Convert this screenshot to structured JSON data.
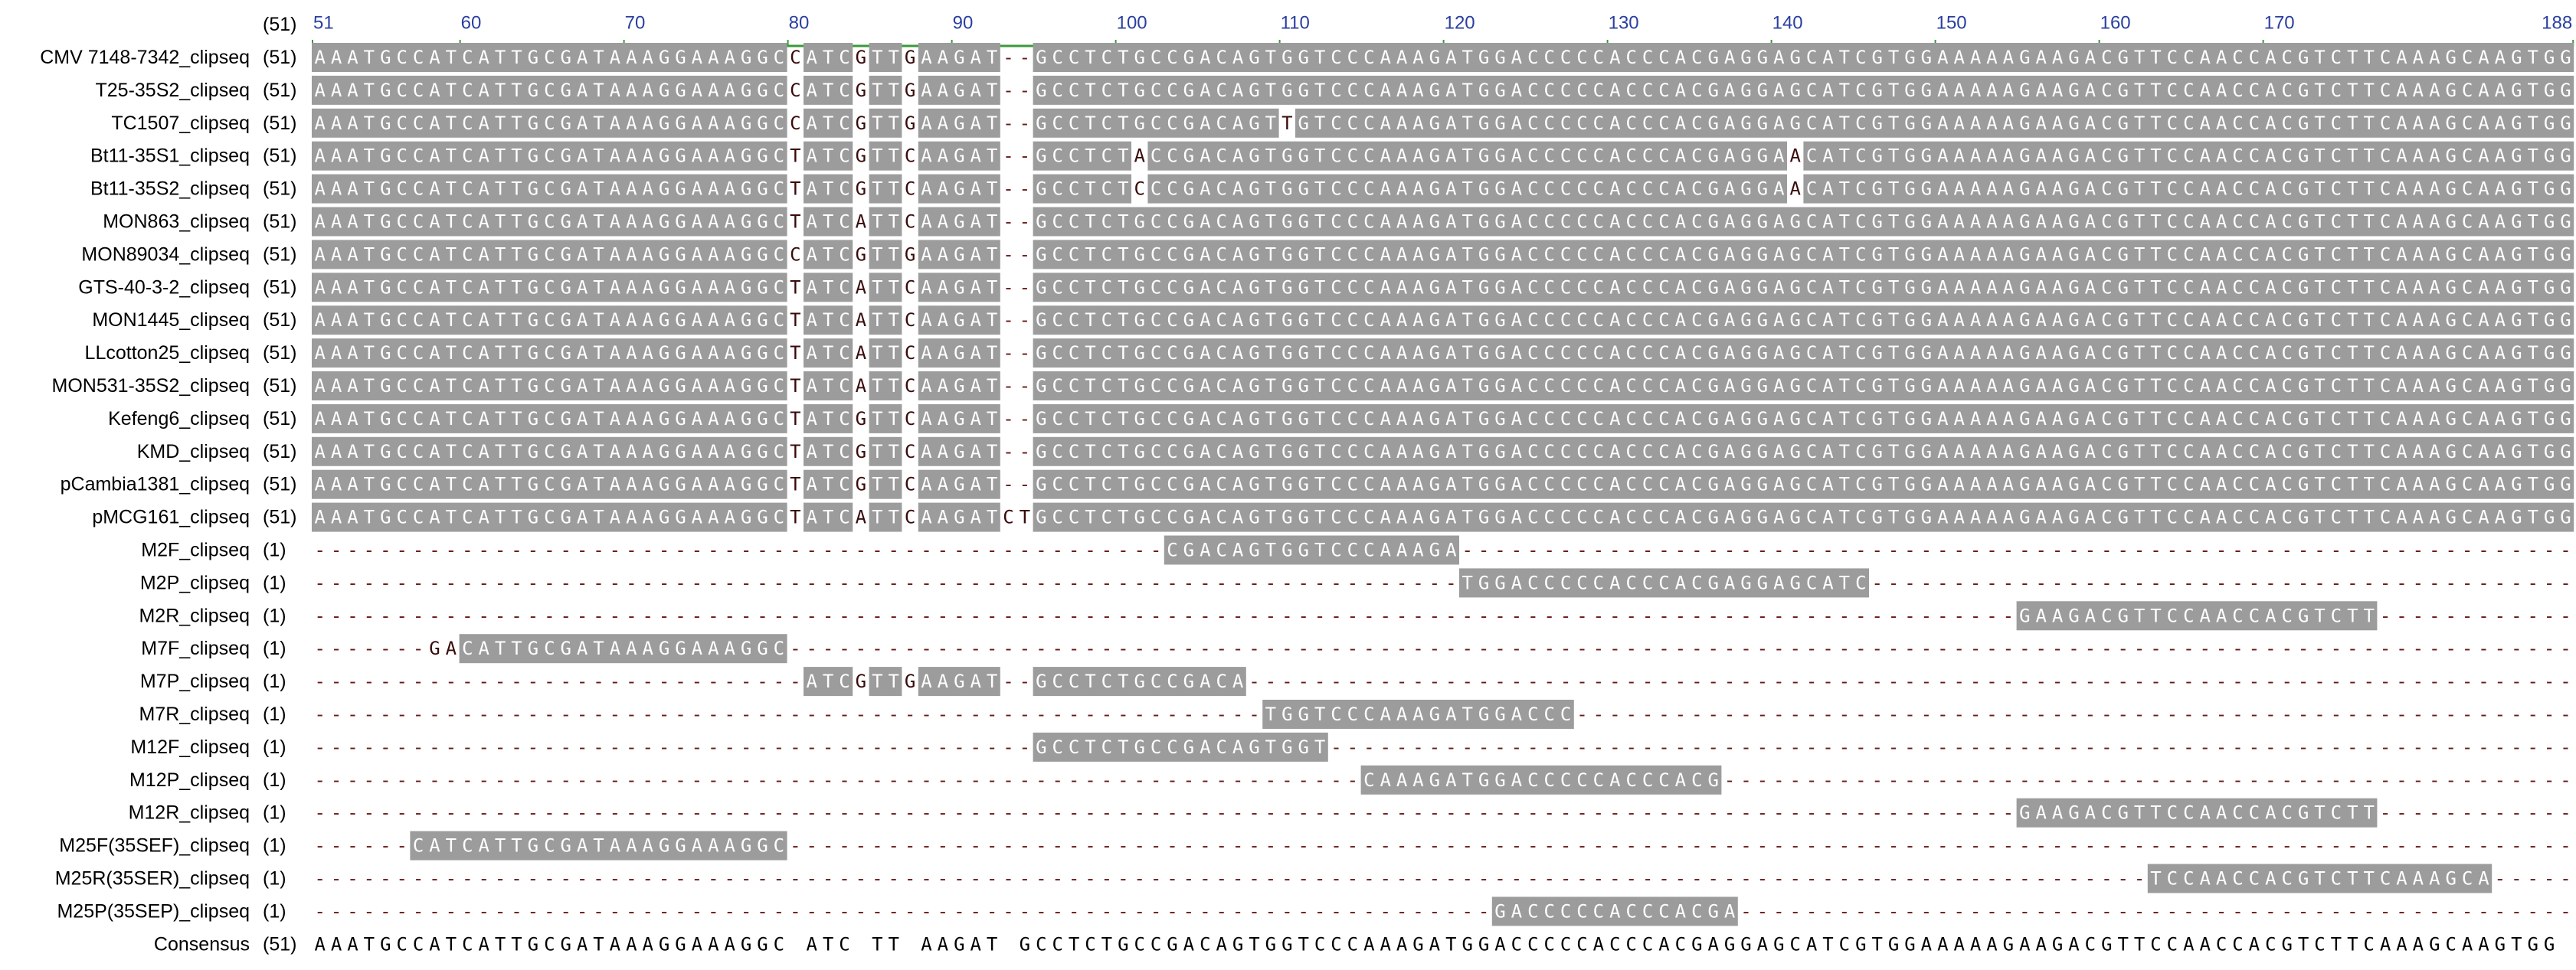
{
  "ruler": {
    "start": "(51)",
    "ticks": [
      51,
      60,
      70,
      80,
      90,
      100,
      110,
      120,
      130,
      140,
      150,
      160,
      170,
      188
    ]
  },
  "rows": [
    {
      "name": "CMV 7148-7342_clipseq",
      "start": "(51)",
      "sequence": "AAATGCCATCATTGCGATAAAGGAAAGGCCATCGTTGAAGAT--GCCTCTGCCGACAGTGGTCCCAAAGATGGACCCCCACCCACGAGGAGCATCGTGGAAAAAGAAGACGTTCCAACCACGTCTTCAAAGCAAGTGG"
    },
    {
      "name": "T25-35S2_clipseq",
      "start": "(51)",
      "sequence": "AAATGCCATCATTGCGATAAAGGAAAGGCCATCGTTGAAGAT--GCCTCTGCCGACAGTGGTCCCAAAGATGGACCCCCACCCACGAGGAGCATCGTGGAAAAAGAAGACGTTCCAACCACGTCTTCAAAGCAAGTGG"
    },
    {
      "name": "TC1507_clipseq",
      "start": "(51)",
      "sequence": "AAATGCCATCATTGCGATAAAGGAAAGGCCATCGTTGAAGAT--GCCTCTGCCGACAGTTGTCCCAAAGATGGACCCCCACCCACGAGGAGCATCGTGGAAAAAGAAGACGTTCCAACCACGTCTTCAAAGCAAGTGG"
    },
    {
      "name": "Bt11-35S1_clipseq",
      "start": "(51)",
      "sequence": "AAATGCCATCATTGCGATAAAGGAAAGGCTATCGTTCAAGAT--GCCTCTACCGACAGTGGTCCCAAAGATGGACCCCCACCCACGAGGAACATCGTGGAAAAAGAAGACGTTCCAACCACGTCTTCAAAGCAAGTGG"
    },
    {
      "name": "Bt11-35S2_clipseq",
      "start": "(51)",
      "sequence": "AAATGCCATCATTGCGATAAAGGAAAGGCTATCGTTCAAGAT--GCCTCTCCCGACAGTGGTCCCAAAGATGGACCCCCACCCACGAGGAACATCGTGGAAAAAGAAGACGTTCCAACCACGTCTTCAAAGCAAGTGG"
    },
    {
      "name": "MON863_clipseq",
      "start": "(51)",
      "sequence": "AAATGCCATCATTGCGATAAAGGAAAGGCTATCATTCAAGAT--GCCTCTGCCGACAGTGGTCCCAAAGATGGACCCCCACCCACGAGGAGCATCGTGGAAAAAGAAGACGTTCCAACCACGTCTTCAAAGCAAGTGG"
    },
    {
      "name": "MON89034_clipseq",
      "start": "(51)",
      "sequence": "AAATGCCATCATTGCGATAAAGGAAAGGCCATCGTTGAAGAT--GCCTCTGCCGACAGTGGTCCCAAAGATGGACCCCCACCCACGAGGAGCATCGTGGAAAAAGAAGACGTTCCAACCACGTCTTCAAAGCAAGTGG"
    },
    {
      "name": "GTS-40-3-2_clipseq",
      "start": "(51)",
      "sequence": "AAATGCCATCATTGCGATAAAGGAAAGGCTATCATTCAAGAT--GCCTCTGCCGACAGTGGTCCCAAAGATGGACCCCCACCCACGAGGAGCATCGTGGAAAAAGAAGACGTTCCAACCACGTCTTCAAAGCAAGTGG"
    },
    {
      "name": "MON1445_clipseq",
      "start": "(51)",
      "sequence": "AAATGCCATCATTGCGATAAAGGAAAGGCTATCATTCAAGAT--GCCTCTGCCGACAGTGGTCCCAAAGATGGACCCCCACCCACGAGGAGCATCGTGGAAAAAGAAGACGTTCCAACCACGTCTTCAAAGCAAGTGG"
    },
    {
      "name": "LLcotton25_clipseq",
      "start": "(51)",
      "sequence": "AAATGCCATCATTGCGATAAAGGAAAGGCTATCATTCAAGAT--GCCTCTGCCGACAGTGGTCCCAAAGATGGACCCCCACCCACGAGGAGCATCGTGGAAAAAGAAGACGTTCCAACCACGTCTTCAAAGCAAGTGG"
    },
    {
      "name": "MON531-35S2_clipseq",
      "start": "(51)",
      "sequence": "AAATGCCATCATTGCGATAAAGGAAAGGCTATCATTCAAGAT--GCCTCTGCCGACAGTGGTCCCAAAGATGGACCCCCACCCACGAGGAGCATCGTGGAAAAAGAAGACGTTCCAACCACGTCTTCAAAGCAAGTGG"
    },
    {
      "name": "Kefeng6_clipseq",
      "start": "(51)",
      "sequence": "AAATGCCATCATTGCGATAAAGGAAAGGCTATCGTTCAAGAT--GCCTCTGCCGACAGTGGTCCCAAAGATGGACCCCCACCCACGAGGAGCATCGTGGAAAAAGAAGACGTTCCAACCACGTCTTCAAAGCAAGTGG"
    },
    {
      "name": "KMD_clipseq",
      "start": "(51)",
      "sequence": "AAATGCCATCATTGCGATAAAGGAAAGGCTATCGTTCAAGAT--GCCTCTGCCGACAGTGGTCCCAAAGATGGACCCCCACCCACGAGGAGCATCGTGGAAAAAGAAGACGTTCCAACCACGTCTTCAAAGCAAGTGG"
    },
    {
      "name": "pCambia1381_clipseq",
      "start": "(51)",
      "sequence": "AAATGCCATCATTGCGATAAAGGAAAGGCTATCGTTCAAGAT--GCCTCTGCCGACAGTGGTCCCAAAGATGGACCCCCACCCACGAGGAGCATCGTGGAAAAAGAAGACGTTCCAACCACGTCTTCAAAGCAAGTGG"
    },
    {
      "name": "pMCG161_clipseq",
      "start": "(51)",
      "sequence": "AAATGCCATCATTGCGATAAAGGAAAGGCTATCATTCAAGATCTGCCTCTGCCGACAGTGGTCCCAAAGATGGACCCCCACCCACGAGGAGCATCGTGGAAAAAGAAGACGTTCCAACCACGTCTTCAAAGCAAGTGG"
    },
    {
      "name": "M2F_clipseq",
      "start": "(1)",
      "sequence": "----------------------------------------------------CGACAGTGGTCCCAAAGA--------------------------------------------------------------------"
    },
    {
      "name": "M2P_clipseq",
      "start": "(1)",
      "sequence": "----------------------------------------------------------------------TGGACCCCCACCCACGAGGAGCATC-------------------------------------------"
    },
    {
      "name": "M2R_clipseq",
      "start": "(1)",
      "sequence": "--------------------------------------------------------------------------------------------------------GAAGACGTTCCAACCACGTCTT------------"
    },
    {
      "name": "M7F_clipseq",
      "start": "(1)",
      "sequence": "-------GACATTGCGATAAAGGAAAGGC-------------------------------------------------------------------------------------------------------------"
    },
    {
      "name": "M7P_clipseq",
      "start": "(1)",
      "sequence": "------------------------------ATCGTTGAAGAT--GCCTCTGCCGACA---------------------------------------------------------------------------------"
    },
    {
      "name": "M7R_clipseq",
      "start": "(1)",
      "sequence": "----------------------------------------------------------TGGTCCCAAAGATGGACCC-------------------------------------------------------------"
    },
    {
      "name": "M12F_clipseq",
      "start": "(1)",
      "sequence": "--------------------------------------------GCCTCTGCCGACAGTGGT----------------------------------------------------------------------------"
    },
    {
      "name": "M12P_clipseq",
      "start": "(1)",
      "sequence": "----------------------------------------------------------------CAAAGATGGACCCCCACCCACG----------------------------------------------------"
    },
    {
      "name": "M12R_clipseq",
      "start": "(1)",
      "sequence": "--------------------------------------------------------------------------------------------------------GAAGACGTTCCAACCACGTCTT------------"
    },
    {
      "name": "M25F(35SEF)_clipseq",
      "start": "(1)",
      "sequence": "------CATCATTGCGATAAAGGAAAGGC-------------------------------------------------------------------------------------------------------------"
    },
    {
      "name": "M25R(35SER)_clipseq",
      "start": "(1)",
      "sequence": "----------------------------------------------------------------------------------------------------------------TCCAACCACGTCTTCAAAGCA-----"
    },
    {
      "name": "M25P(35SEP)_clipseq",
      "start": "(1)",
      "sequence": "------------------------------------------------------------------------GACCCCCACCCACGA---------------------------------------------------"
    }
  ],
  "consensus": {
    "name": "Consensus",
    "start": "(51)",
    "sequence": "AAATGCCATCATTGCGATAAAGGAAAGGC ATC TT AAGAT  GCCTCTGCCGACAGTGGTCCCAAAGATGGACCCCCACCCACGAGGAGCATCGTGGAAAAAGAAGACGTTCCAACCACGTCTTCAAAGCAAGTGG"
  }
}
